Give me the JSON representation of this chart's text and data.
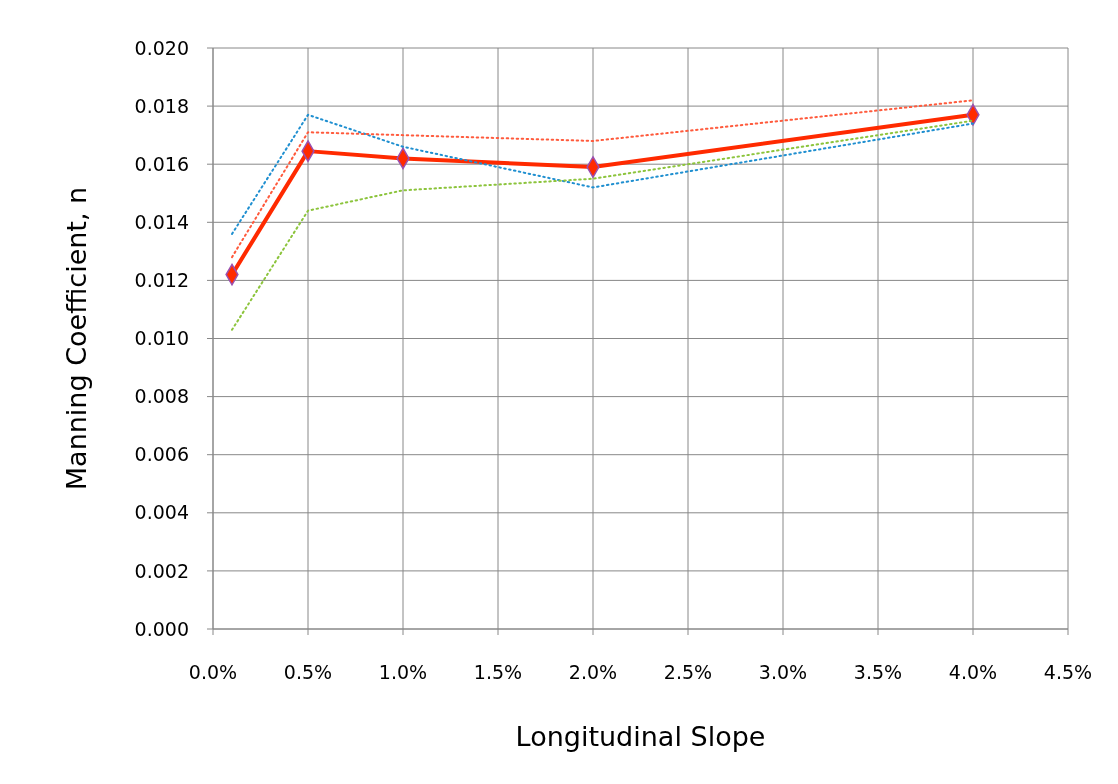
{
  "chart_data": {
    "type": "line",
    "xlabel": "Longitudinal Slope",
    "ylabel": "Manning Coefficient, n",
    "x": [
      0.1,
      0.5,
      1,
      2,
      4
    ],
    "xlim": [
      0,
      4.5
    ],
    "xticks": [
      {
        "value": 0,
        "label": "0.0%"
      },
      {
        "value": 0.5,
        "label": "0.5%"
      },
      {
        "value": 1,
        "label": "1.0%"
      },
      {
        "value": 1.5,
        "label": "1.5%"
      },
      {
        "value": 2,
        "label": "2.0%"
      },
      {
        "value": 2.5,
        "label": "2.5%"
      },
      {
        "value": 3,
        "label": "3.0%"
      },
      {
        "value": 3.5,
        "label": "3.5%"
      },
      {
        "value": 4,
        "label": "4.0%"
      },
      {
        "value": 4.5,
        "label": "4.5%"
      }
    ],
    "ylim": [
      0,
      0.02
    ],
    "yticks": [
      {
        "value": 0,
        "label": "0.000"
      },
      {
        "value": 0.002,
        "label": "0.002"
      },
      {
        "value": 0.004,
        "label": "0.004"
      },
      {
        "value": 0.006,
        "label": "0.006"
      },
      {
        "value": 0.008,
        "label": "0.008"
      },
      {
        "value": 0.01,
        "label": "0.010"
      },
      {
        "value": 0.012,
        "label": "0.012"
      },
      {
        "value": 0.014,
        "label": "0.014"
      },
      {
        "value": 0.016,
        "label": "0.016"
      },
      {
        "value": 0.018,
        "label": "0.018"
      },
      {
        "value": 0.02,
        "label": "0.020"
      }
    ],
    "grid": true,
    "series": [
      {
        "color": "#ff2a00",
        "values": [
          0.0122,
          0.01645,
          0.0162,
          0.0159,
          0.0177
        ],
        "marker": "diamond",
        "line_style": "solid"
      },
      {
        "color": "#1f8fd0",
        "values": [
          0.0136,
          0.0177,
          0.0166,
          0.0152,
          0.0174
        ],
        "marker": "none",
        "line_style": "dotted"
      },
      {
        "color": "#ff5a3c",
        "values": [
          0.0128,
          0.0171,
          0.017,
          0.0168,
          0.0182
        ],
        "marker": "none",
        "line_style": "dotted"
      },
      {
        "color": "#8cc43c",
        "values": [
          0.0103,
          0.0144,
          0.0151,
          0.0155,
          0.0175
        ],
        "marker": "none",
        "line_style": "dotted"
      }
    ]
  }
}
